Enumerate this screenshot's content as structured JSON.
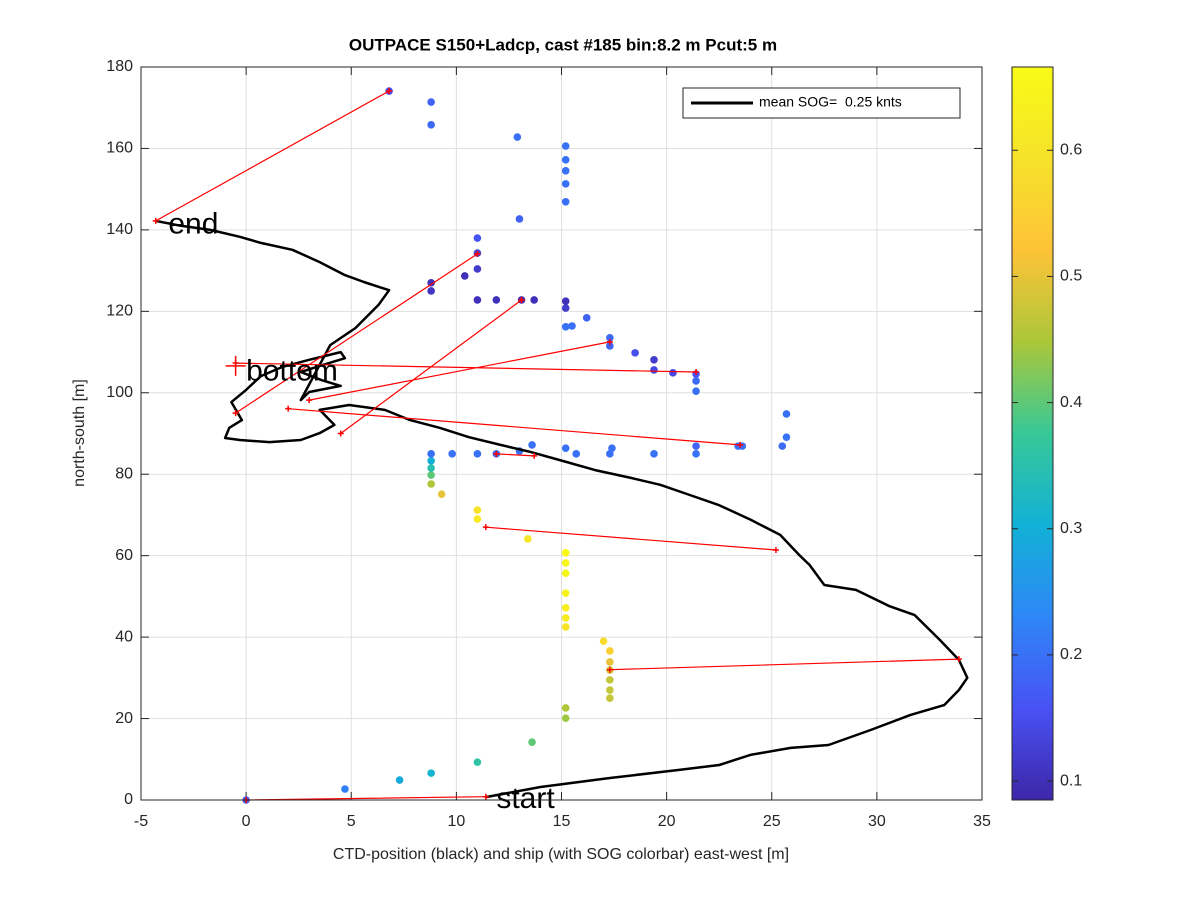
{
  "chart_data": {
    "type": "scatter",
    "title": "OUTPACE S150+Ladcp, cast #185 bin:8.2 m  Pcut:5 m",
    "xlabel": "CTD-position (black) and ship (with SOG colorbar) east-west [m]",
    "ylabel": "north-south [m]",
    "xlim": [
      -5,
      35
    ],
    "xticks": [
      -5,
      0,
      5,
      10,
      15,
      20,
      25,
      30,
      35
    ],
    "ylim": [
      0,
      180
    ],
    "yticks": [
      0,
      20,
      40,
      60,
      80,
      100,
      120,
      140,
      160,
      180
    ],
    "grid": true,
    "legend": "upper right",
    "series": [
      {
        "name": "mean SOG=  0.25 knts",
        "type": "line",
        "color": "#000000",
        "x": [
          11.4,
          14.0,
          17.3,
          20.6,
          22.5,
          24.0,
          25.9,
          27.7,
          29.7,
          31.6,
          33.2,
          33.9,
          34.3,
          33.9,
          33.0,
          31.8,
          30.6,
          29.0,
          27.5,
          26.8,
          26.3,
          25.4,
          24.0,
          22.5,
          21.1,
          19.7,
          18.3,
          16.6,
          14.9,
          13.5,
          12.1,
          10.6,
          9.2,
          7.8,
          6.6,
          4.9,
          3.5,
          4.2,
          3.5,
          2.6,
          1.1,
          -0.3,
          -1.0,
          -0.8,
          -0.2,
          -0.7,
          0,
          0.7,
          1.7,
          3.0,
          4.5,
          4.7,
          3.5,
          2.6,
          3.6,
          4.5,
          3.0,
          2.6,
          4.0,
          5.2,
          6.3,
          6.8,
          5.6,
          4.7,
          3.5,
          2.2,
          0.7,
          -0.3,
          -1.7,
          -3.1,
          -4.3
        ],
        "y": [
          0.7,
          3.2,
          5.4,
          7.4,
          8.6,
          11.1,
          12.8,
          13.5,
          17.2,
          20.9,
          23.3,
          27.0,
          30.0,
          34.4,
          39.3,
          45.4,
          47.6,
          51.6,
          52.8,
          57.7,
          60.2,
          65.1,
          68.8,
          72.4,
          74.9,
          77.4,
          79.1,
          81.0,
          83.5,
          85.5,
          87.2,
          89.1,
          91.4,
          93.3,
          95.8,
          97.0,
          95.8,
          92.1,
          90.1,
          88.4,
          87.9,
          88.4,
          88.9,
          91.4,
          93.3,
          97.7,
          100.7,
          104.1,
          106.3,
          108.1,
          110.0,
          108.5,
          106.6,
          105.1,
          103.1,
          101.7,
          100.2,
          98.2,
          111.7,
          115.9,
          121.6,
          125.2,
          127.2,
          128.9,
          132.1,
          135.1,
          136.8,
          138.3,
          140.0,
          141.0,
          142.2
        ]
      },
      {
        "type": "scatter",
        "x": [
          0,
          4.7,
          7.3,
          8.8,
          11.0,
          13.6,
          15.2,
          15.2,
          17.3,
          17.3,
          17.3,
          17.3,
          17.3,
          17.3,
          17.0,
          15.2,
          15.2,
          15.2,
          15.2,
          15.2,
          15.2,
          15.2,
          13.4,
          11.0,
          11.0,
          9.3,
          8.8,
          8.8,
          8.8,
          8.8,
          8.8,
          9.8,
          11.0,
          11.9,
          13.0,
          13.6,
          15.2,
          15.7,
          17.3,
          17.4,
          19.4,
          21.4,
          21.4,
          23.4,
          23.6,
          25.5,
          25.7,
          25.7,
          21.4,
          21.4,
          21.4,
          20.3,
          19.4,
          19.4,
          18.5,
          17.3,
          17.3,
          16.2,
          15.5,
          15.2,
          15.2,
          15.2,
          13.7,
          13.1,
          11.9,
          11.0,
          8.8,
          8.8,
          10.4,
          11.0,
          11.0,
          11.0,
          13.0,
          15.2,
          15.2,
          15.2,
          15.2,
          15.2,
          12.9,
          8.8,
          8.8,
          6.8
        ],
        "y": [
          0,
          2.7,
          4.9,
          6.6,
          9.3,
          14.2,
          20.1,
          22.6,
          25.0,
          27.0,
          29.5,
          31.9,
          33.9,
          36.6,
          39.0,
          42.5,
          44.7,
          47.2,
          50.8,
          55.7,
          58.2,
          60.7,
          64.1,
          69.0,
          71.2,
          75.1,
          77.6,
          79.8,
          81.5,
          83.3,
          85.0,
          85.0,
          85.0,
          85.0,
          85.7,
          87.2,
          86.4,
          85.0,
          85.0,
          86.4,
          85.0,
          85.0,
          86.9,
          86.9,
          86.9,
          86.9,
          89.1,
          94.8,
          100.4,
          102.9,
          104.6,
          104.9,
          105.6,
          108.1,
          109.8,
          111.5,
          113.5,
          118.4,
          116.4,
          116.2,
          120.8,
          122.5,
          122.8,
          122.8,
          122.8,
          122.8,
          125.0,
          127.0,
          128.7,
          130.4,
          134.3,
          138.0,
          142.7,
          146.9,
          151.3,
          154.5,
          157.2,
          160.6,
          162.8,
          165.8,
          171.4,
          174.1
        ],
        "c": [
          0.17,
          0.22,
          0.29,
          0.31,
          0.36,
          0.4,
          0.44,
          0.45,
          0.47,
          0.47,
          0.47,
          0.48,
          0.5,
          0.55,
          0.58,
          0.6,
          0.62,
          0.63,
          0.64,
          0.65,
          0.65,
          0.66,
          0.6,
          0.62,
          0.6,
          0.5,
          0.45,
          0.4,
          0.35,
          0.3,
          0.2,
          0.2,
          0.2,
          0.19,
          0.2,
          0.2,
          0.2,
          0.2,
          0.2,
          0.2,
          0.2,
          0.2,
          0.18,
          0.2,
          0.2,
          0.19,
          0.2,
          0.2,
          0.2,
          0.19,
          0.16,
          0.14,
          0.14,
          0.12,
          0.15,
          0.18,
          0.19,
          0.18,
          0.2,
          0.2,
          0.12,
          0.1,
          0.1,
          0.1,
          0.1,
          0.1,
          0.11,
          0.1,
          0.1,
          0.12,
          0.13,
          0.16,
          0.18,
          0.2,
          0.2,
          0.2,
          0.2,
          0.2,
          0.2,
          0.19,
          0.18,
          0.15
        ]
      },
      {
        "type": "line",
        "color": "#ff0000",
        "x": [
          0,
          11.4,
          null,
          17.3,
          33.9,
          null,
          11.4,
          25.2,
          null,
          11.9,
          13.7,
          null,
          2.0,
          23.5,
          null,
          4.5,
          13.1,
          null,
          3.0,
          17.3,
          null,
          -0.5,
          11.0,
          null,
          -0.5,
          21.4,
          null,
          -4.3,
          6.8
        ],
        "y": [
          0,
          0.8,
          null,
          32.0,
          34.6,
          null,
          67.0,
          61.4,
          null,
          85.0,
          84.5,
          null,
          96.1,
          87.2,
          null,
          90.0,
          122.8,
          null,
          98.2,
          112.5,
          null,
          95.0,
          134.1,
          null,
          107.3,
          105.1,
          null,
          142.2,
          174.1
        ]
      }
    ],
    "marker": {
      "x": -0.5,
      "y": 106.6,
      "color": "#ff0000"
    },
    "annotations": [
      {
        "text": "end",
        "x": -3.7,
        "y": 141
      },
      {
        "text": "bottom",
        "x": 0,
        "y": 105
      },
      {
        "text": "start",
        "x": 11.9,
        "y": 0
      }
    ],
    "colorbar": {
      "colormap": "parula",
      "clim": [
        0.085,
        0.666
      ],
      "ticks": [
        0.1,
        0.2,
        0.3,
        0.4,
        0.5,
        0.6
      ]
    }
  }
}
